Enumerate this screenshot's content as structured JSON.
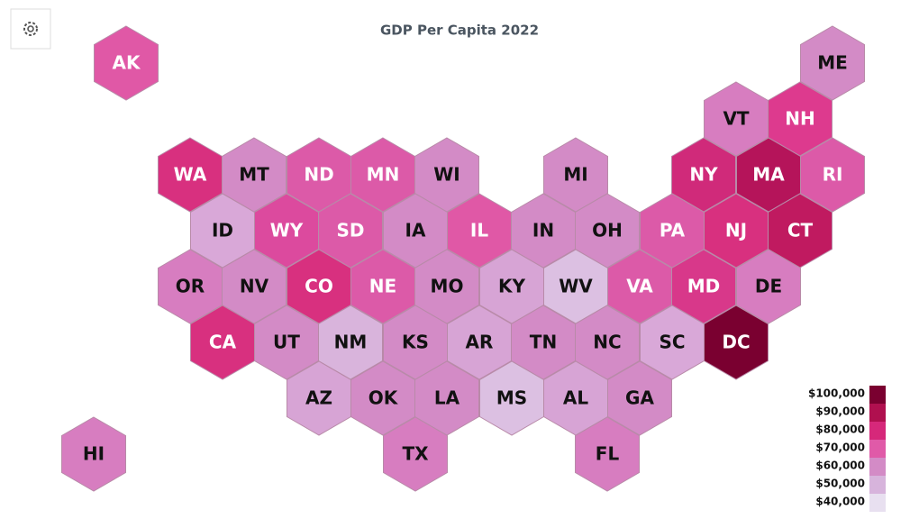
{
  "title": "GDP Per Capita 2022",
  "states": [
    {
      "label": "AK",
      "color": "#e058a6"
    },
    {
      "label": "ME",
      "color": "#d38bc6"
    },
    {
      "label": "VT",
      "color": "#d77dc0"
    },
    {
      "label": "NH",
      "color": "#dd3a8e"
    },
    {
      "label": "WA",
      "color": "#d8307f"
    },
    {
      "label": "MT",
      "color": "#d38bc6"
    },
    {
      "label": "ND",
      "color": "#dc5aa8"
    },
    {
      "label": "MN",
      "color": "#dc5aa8"
    },
    {
      "label": "WI",
      "color": "#d38bc6"
    },
    {
      "label": "MI",
      "color": "#d38bc6"
    },
    {
      "label": "NY",
      "color": "#d02a7a"
    },
    {
      "label": "MA",
      "color": "#b5145a"
    },
    {
      "label": "RI",
      "color": "#dc5aa8"
    },
    {
      "label": "ID",
      "color": "#d9a8d8"
    },
    {
      "label": "WY",
      "color": "#dc4a9e"
    },
    {
      "label": "SD",
      "color": "#dc5aa8"
    },
    {
      "label": "IA",
      "color": "#d38bc6"
    },
    {
      "label": "IL",
      "color": "#e058a6"
    },
    {
      "label": "IN",
      "color": "#d38bc6"
    },
    {
      "label": "OH",
      "color": "#d38bc6"
    },
    {
      "label": "PA",
      "color": "#dc5aa8"
    },
    {
      "label": "NJ",
      "color": "#d8307f"
    },
    {
      "label": "CT",
      "color": "#c01a60"
    },
    {
      "label": "OR",
      "color": "#d77dc0"
    },
    {
      "label": "NV",
      "color": "#d38bc6"
    },
    {
      "label": "CO",
      "color": "#d8307f"
    },
    {
      "label": "NE",
      "color": "#dc5aa8"
    },
    {
      "label": "MO",
      "color": "#d38bc6"
    },
    {
      "label": "KY",
      "color": "#d7a4d5"
    },
    {
      "label": "WV",
      "color": "#dcc0e2"
    },
    {
      "label": "VA",
      "color": "#dc5aa8"
    },
    {
      "label": "MD",
      "color": "#d8388a"
    },
    {
      "label": "DE",
      "color": "#d77dc0"
    },
    {
      "label": "CA",
      "color": "#d8307f"
    },
    {
      "label": "UT",
      "color": "#d38bc6"
    },
    {
      "label": "NM",
      "color": "#d9b4dc"
    },
    {
      "label": "KS",
      "color": "#d38bc6"
    },
    {
      "label": "AR",
      "color": "#d7a4d5"
    },
    {
      "label": "TN",
      "color": "#d38bc6"
    },
    {
      "label": "NC",
      "color": "#d38bc6"
    },
    {
      "label": "SC",
      "color": "#d9a8d8"
    },
    {
      "label": "DC",
      "color": "#7a0030"
    },
    {
      "label": "AZ",
      "color": "#d7a4d5"
    },
    {
      "label": "OK",
      "color": "#d38bc6"
    },
    {
      "label": "LA",
      "color": "#d38bc6"
    },
    {
      "label": "MS",
      "color": "#dcc0e2"
    },
    {
      "label": "AL",
      "color": "#d7a4d5"
    },
    {
      "label": "GA",
      "color": "#d38bc6"
    },
    {
      "label": "HI",
      "color": "#d77dc0"
    },
    {
      "label": "TX",
      "color": "#d77dc0"
    },
    {
      "label": "FL",
      "color": "#d77dc0"
    }
  ],
  "legend": [
    {
      "label": "$100,000",
      "color": "#7a0030"
    },
    {
      "label": "$90,000",
      "color": "#b0104f"
    },
    {
      "label": "$80,000",
      "color": "#d6287a"
    },
    {
      "label": "$70,000",
      "color": "#e05aa8"
    },
    {
      "label": "$60,000",
      "color": "#d38bc6"
    },
    {
      "label": "$50,000",
      "color": "#d7b4dc"
    },
    {
      "label": "$40,000",
      "color": "#e8e0f0"
    }
  ]
}
